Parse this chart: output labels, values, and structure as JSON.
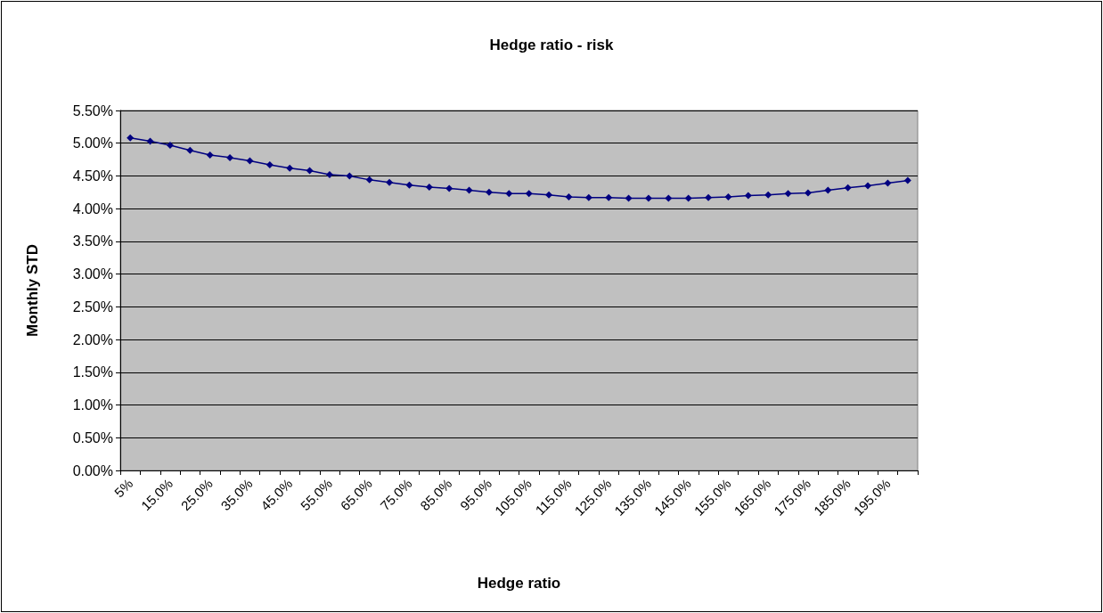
{
  "chart_data": {
    "type": "line",
    "title": "Hedge ratio - risk",
    "xlabel": "Hedge ratio",
    "ylabel": "Monthly STD",
    "categories": [
      "5%",
      null,
      "15.0%",
      null,
      "25.0%",
      null,
      "35.0%",
      null,
      "45.0%",
      null,
      "55.0%",
      null,
      "65.0%",
      null,
      "75.0%",
      null,
      "85.0%",
      null,
      "95.0%",
      null,
      "105.0%",
      null,
      "115.0%",
      null,
      "125.0%",
      null,
      "135.0%",
      null,
      "145.0%",
      null,
      "155.0%",
      null,
      "165.0%",
      null,
      "175.0%",
      null,
      "185.0%",
      null,
      "195.0%",
      null
    ],
    "series": [
      {
        "color": "#000080",
        "values": [
          5.08,
          5.03,
          4.97,
          4.89,
          4.82,
          4.78,
          4.73,
          4.67,
          4.62,
          4.58,
          4.52,
          4.5,
          4.44,
          4.4,
          4.36,
          4.33,
          4.31,
          4.28,
          4.25,
          4.23,
          4.23,
          4.21,
          4.18,
          4.17,
          4.17,
          4.16,
          4.16,
          4.16,
          4.16,
          4.17,
          4.18,
          4.2,
          4.21,
          4.23,
          4.24,
          4.28,
          4.32,
          4.35,
          4.39,
          4.43
        ]
      }
    ],
    "ylim": [
      0,
      5.5
    ],
    "yticks": [
      {
        "value": 0,
        "label": "0.00%"
      },
      {
        "value": 0.5,
        "label": "0.50%"
      },
      {
        "value": 1,
        "label": "1.00%"
      },
      {
        "value": 1.5,
        "label": "1.50%"
      },
      {
        "value": 2,
        "label": "2.00%"
      },
      {
        "value": 2.5,
        "label": "2.50%"
      },
      {
        "value": 3,
        "label": "3.00%"
      },
      {
        "value": 3.5,
        "label": "3.50%"
      },
      {
        "value": 4,
        "label": "4.00%"
      },
      {
        "value": 4.5,
        "label": "4.50%"
      },
      {
        "value": 5,
        "label": "5.00%"
      },
      {
        "value": 5.5,
        "label": "5.50%"
      }
    ],
    "grid": "y",
    "marker": "diamond",
    "line_style": "solid"
  }
}
